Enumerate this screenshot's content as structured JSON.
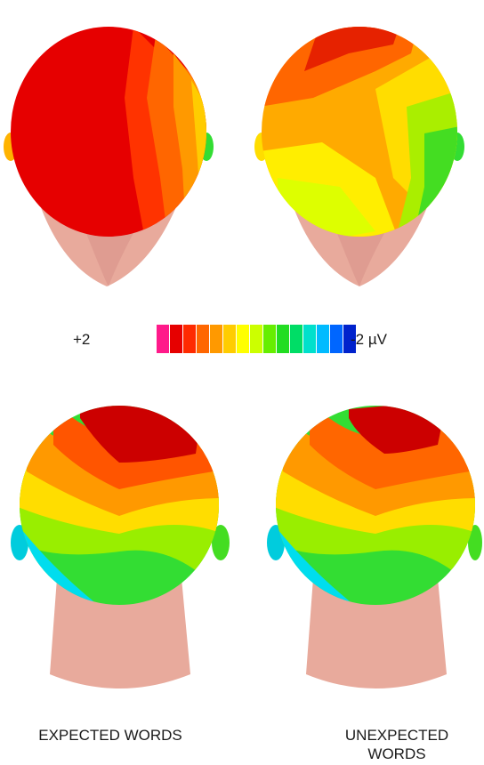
{
  "scale": {
    "max_label": "+2",
    "min_label": "-2 µV",
    "colors": [
      "#ff1a8a",
      "#e60000",
      "#ff2a00",
      "#ff6600",
      "#ff9900",
      "#ffcc00",
      "#ffff00",
      "#ccff00",
      "#66ee00",
      "#22dd22",
      "#00dd66",
      "#00e0cc",
      "#00bbff",
      "#0066ff",
      "#0022cc"
    ]
  },
  "captions": {
    "expected": "EXPECTED WORDS",
    "unexpected": "UNEXPECTED WORDS"
  },
  "panels": [
    {
      "view": "top",
      "condition": "expected",
      "dominant_colors": [
        "#e60000",
        "#ff5500",
        "#ffaa00",
        "#66ee00"
      ]
    },
    {
      "view": "top",
      "condition": "unexpected",
      "dominant_colors": [
        "#e62200",
        "#ff8800",
        "#ffee00",
        "#44dd22"
      ]
    },
    {
      "view": "back",
      "condition": "expected",
      "dominant_colors": [
        "#cc0000",
        "#ff6600",
        "#ffdd00",
        "#33dd33",
        "#00ddee",
        "#1144dd"
      ]
    },
    {
      "view": "back",
      "condition": "unexpected",
      "dominant_colors": [
        "#cc0000",
        "#ff7700",
        "#ffdd00",
        "#33dd33",
        "#00ddee",
        "#1144dd"
      ]
    }
  ],
  "skin_color": "#e8aa9c"
}
